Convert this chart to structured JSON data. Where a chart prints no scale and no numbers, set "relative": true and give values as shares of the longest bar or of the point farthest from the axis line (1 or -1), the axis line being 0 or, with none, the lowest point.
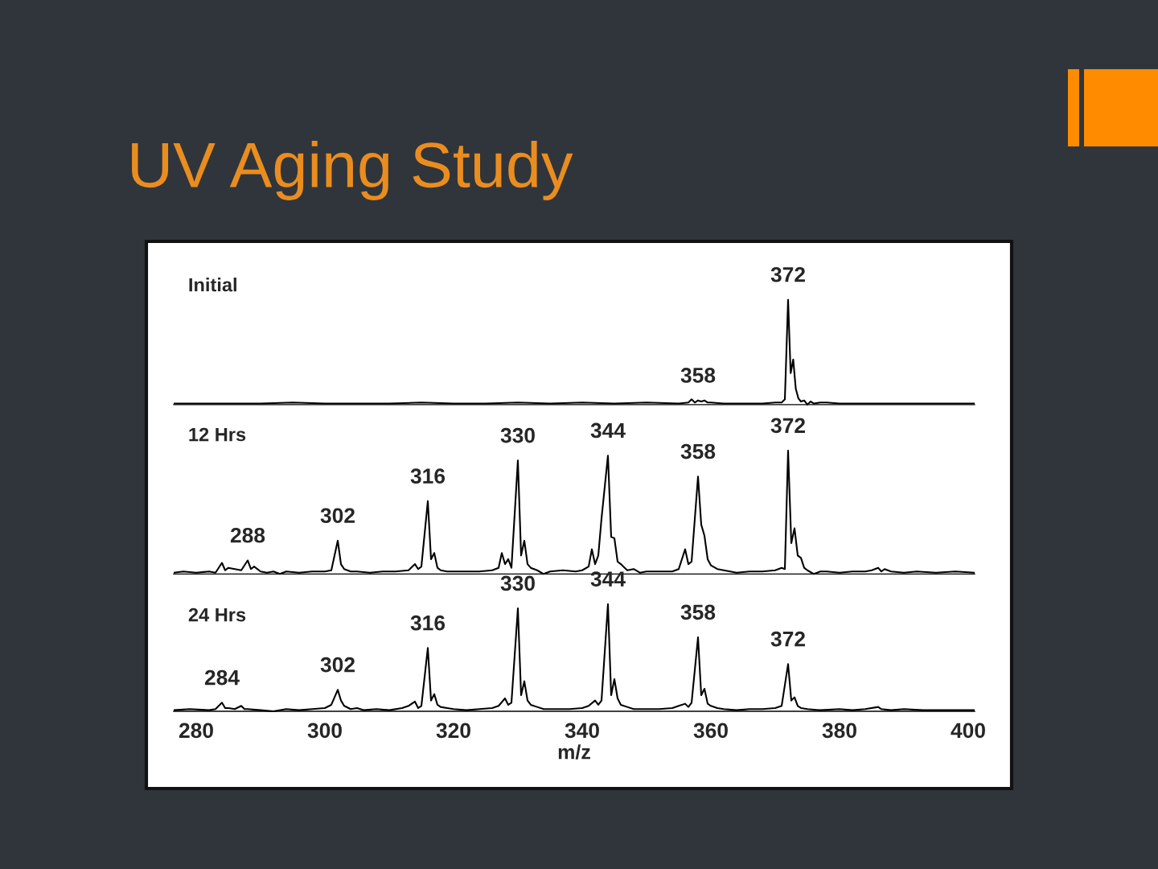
{
  "chart_data": [
    {
      "type": "line",
      "title": "UV Aging Study",
      "relative": true,
      "color": "#000000",
      "xlim": [
        276.5,
        401
      ],
      "xticks": [
        280,
        300,
        320,
        340,
        360,
        380,
        400
      ],
      "tick_labels": false,
      "x": [
        276.5,
        280,
        285,
        290,
        295,
        300,
        305,
        310,
        315,
        320,
        325,
        330,
        335,
        340,
        345,
        350,
        355,
        356.5,
        357,
        357.5,
        358,
        358.5,
        359,
        359.5,
        360,
        362,
        365,
        368,
        370,
        371,
        371.5,
        372,
        372.4,
        372.8,
        373.2,
        373.6,
        374,
        374.5,
        375,
        375.5,
        376,
        377,
        378,
        380,
        385,
        390,
        395,
        401
      ],
      "values": [
        0.01,
        0.01,
        0.01,
        0.01,
        0.02,
        0.01,
        0.01,
        0.01,
        0.02,
        0.01,
        0.01,
        0.02,
        0.01,
        0.02,
        0.01,
        0.02,
        0.01,
        0.02,
        0.05,
        0.02,
        0.04,
        0.03,
        0.04,
        0.02,
        0.02,
        0.01,
        0.01,
        0.01,
        0.02,
        0.02,
        0.05,
        1.0,
        0.3,
        0.43,
        0.15,
        0.06,
        0.03,
        0.04,
        0.0,
        0.03,
        0.01,
        0.02,
        0.02,
        0.01,
        0.01,
        0.01,
        0.01,
        0.01
      ],
      "annotations": [
        "Initial",
        {
          "text": "358",
          "x": 358,
          "y": 0.04
        },
        {
          "text": "372",
          "x": 372,
          "y": 1.0
        }
      ]
    },
    {
      "type": "line",
      "relative": true,
      "color": "#000000",
      "xlim": [
        276.5,
        401
      ],
      "xticks": [
        280,
        300,
        320,
        340,
        360,
        380,
        400
      ],
      "tick_labels": false,
      "x": [
        276.5,
        278,
        280,
        282,
        283,
        284,
        284.5,
        285,
        286,
        287,
        288,
        288.5,
        289,
        290,
        291,
        292,
        293,
        294,
        296,
        298,
        300,
        301,
        302,
        302.5,
        303,
        304,
        305,
        307,
        309,
        311,
        313,
        314,
        314.5,
        315,
        316,
        316.5,
        317,
        317.5,
        318,
        319,
        321,
        324,
        326,
        327,
        327.5,
        328,
        328.5,
        329,
        330,
        330.5,
        331,
        331.5,
        332,
        333,
        334,
        335,
        337,
        339,
        340,
        341,
        341.5,
        342,
        342.5,
        343,
        344,
        344.5,
        345,
        345.5,
        346,
        347,
        348,
        349,
        350,
        352,
        354,
        355,
        356,
        356.5,
        357,
        358,
        358.5,
        359,
        359.5,
        360,
        361,
        362,
        363,
        364,
        366,
        368,
        370,
        371,
        371.5,
        372,
        372.5,
        373,
        373.5,
        374,
        374.5,
        375,
        376,
        377,
        378,
        380,
        382,
        384,
        385,
        386,
        386.5,
        387,
        388,
        390,
        392,
        395,
        398,
        401
      ],
      "values": [
        0.01,
        0.02,
        0.01,
        0.02,
        0.01,
        0.09,
        0.03,
        0.05,
        0.04,
        0.03,
        0.11,
        0.04,
        0.06,
        0.02,
        0.01,
        0.02,
        0.0,
        0.02,
        0.01,
        0.02,
        0.02,
        0.03,
        0.27,
        0.08,
        0.04,
        0.02,
        0.02,
        0.01,
        0.02,
        0.02,
        0.03,
        0.08,
        0.04,
        0.06,
        0.59,
        0.12,
        0.17,
        0.05,
        0.03,
        0.02,
        0.02,
        0.02,
        0.03,
        0.05,
        0.17,
        0.08,
        0.12,
        0.05,
        0.92,
        0.15,
        0.27,
        0.08,
        0.05,
        0.03,
        0.0,
        0.02,
        0.03,
        0.02,
        0.03,
        0.06,
        0.2,
        0.08,
        0.15,
        0.45,
        0.96,
        0.3,
        0.29,
        0.1,
        0.08,
        0.03,
        0.04,
        0.01,
        0.02,
        0.02,
        0.02,
        0.04,
        0.2,
        0.08,
        0.1,
        0.79,
        0.4,
        0.31,
        0.12,
        0.07,
        0.04,
        0.03,
        0.02,
        0.01,
        0.02,
        0.02,
        0.03,
        0.05,
        0.04,
        1.0,
        0.25,
        0.37,
        0.15,
        0.13,
        0.05,
        0.03,
        0.0,
        0.02,
        0.02,
        0.01,
        0.02,
        0.02,
        0.03,
        0.05,
        0.02,
        0.04,
        0.02,
        0.01,
        0.02,
        0.01,
        0.02,
        0.01
      ],
      "annotations": [
        "12 Hrs",
        {
          "text": "288",
          "x": 288,
          "y": 0.11
        },
        {
          "text": "302",
          "x": 302,
          "y": 0.27
        },
        {
          "text": "316",
          "x": 316,
          "y": 0.59
        },
        {
          "text": "330",
          "x": 330,
          "y": 0.92
        },
        {
          "text": "344",
          "x": 344,
          "y": 0.96
        },
        {
          "text": "358",
          "x": 358,
          "y": 0.79
        },
        {
          "text": "372",
          "x": 372,
          "y": 1.0
        }
      ]
    },
    {
      "type": "line",
      "relative": true,
      "color": "#000000",
      "xlabel": "m/z",
      "xlim": [
        276.5,
        401
      ],
      "xticks": [
        280,
        300,
        320,
        340,
        360,
        380,
        400
      ],
      "x": [
        276.5,
        279,
        282,
        283,
        284,
        284.5,
        285,
        286,
        287,
        287.5,
        288,
        290,
        292,
        294,
        296,
        298,
        300,
        301,
        302,
        302.5,
        303,
        304,
        305,
        306,
        308,
        310,
        312,
        313,
        314,
        314.5,
        315,
        316,
        316.5,
        317,
        317.5,
        318,
        319,
        320,
        322,
        324,
        326,
        327,
        328,
        328.5,
        329,
        330,
        330.5,
        331,
        331.5,
        332,
        333,
        334,
        336,
        338,
        340,
        341,
        342,
        342.5,
        343,
        344,
        344.5,
        345,
        345.5,
        346,
        347,
        348,
        350,
        352,
        354,
        355,
        356,
        356.5,
        357,
        358,
        358.5,
        359,
        359.5,
        360,
        361,
        362,
        364,
        366,
        368,
        370,
        371,
        372,
        372.5,
        373,
        373.5,
        374,
        375,
        377,
        380,
        382,
        384,
        386,
        386.5,
        388,
        390,
        393,
        396,
        401
      ],
      "values": [
        0.01,
        0.02,
        0.01,
        0.02,
        0.08,
        0.03,
        0.03,
        0.02,
        0.05,
        0.02,
        0.02,
        0.01,
        0.0,
        0.02,
        0.01,
        0.02,
        0.03,
        0.06,
        0.2,
        0.1,
        0.05,
        0.02,
        0.03,
        0.01,
        0.02,
        0.01,
        0.03,
        0.05,
        0.09,
        0.03,
        0.05,
        0.59,
        0.1,
        0.16,
        0.06,
        0.04,
        0.03,
        0.02,
        0.01,
        0.02,
        0.03,
        0.05,
        0.12,
        0.06,
        0.08,
        0.96,
        0.15,
        0.28,
        0.1,
        0.06,
        0.04,
        0.02,
        0.02,
        0.02,
        0.03,
        0.05,
        0.1,
        0.06,
        0.1,
        1.0,
        0.15,
        0.3,
        0.12,
        0.06,
        0.04,
        0.02,
        0.02,
        0.02,
        0.03,
        0.05,
        0.07,
        0.04,
        0.08,
        0.69,
        0.15,
        0.21,
        0.07,
        0.05,
        0.03,
        0.02,
        0.01,
        0.02,
        0.02,
        0.03,
        0.05,
        0.44,
        0.1,
        0.13,
        0.05,
        0.03,
        0.02,
        0.01,
        0.02,
        0.01,
        0.02,
        0.04,
        0.02,
        0.01,
        0.02,
        0.01,
        0.01,
        0.01
      ],
      "annotations": [
        "24 Hrs",
        {
          "text": "284",
          "x": 284,
          "y": 0.08
        },
        {
          "text": "302",
          "x": 302,
          "y": 0.2
        },
        {
          "text": "316",
          "x": 316,
          "y": 0.59
        },
        {
          "text": "330",
          "x": 330,
          "y": 0.96
        },
        {
          "text": "344",
          "x": 344,
          "y": 1.0
        },
        {
          "text": "358",
          "x": 358,
          "y": 0.69
        },
        {
          "text": "372",
          "x": 372,
          "y": 0.44
        }
      ]
    }
  ]
}
